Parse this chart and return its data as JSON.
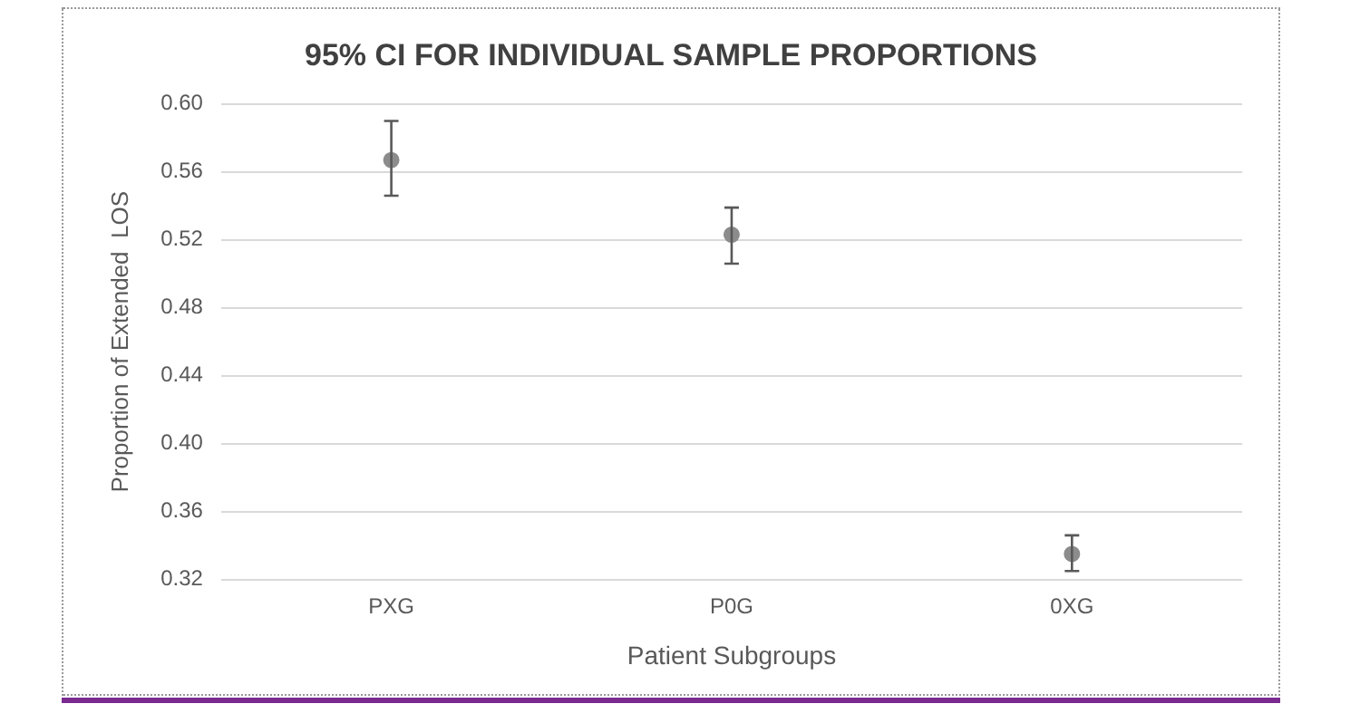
{
  "chart_data": {
    "type": "scatter",
    "title": "95% CI FOR INDIVIDUAL SAMPLE PROPORTIONS",
    "xlabel": "Patient Subgroups",
    "ylabel": "Proportion of Extended  LOS",
    "categories": [
      "PXG",
      "P0G",
      "0XG"
    ],
    "series": [
      {
        "color": "#8c8c8c",
        "values": [
          0.567,
          0.523,
          0.335
        ],
        "errors": [
          [
            0.546,
            0.59
          ],
          [
            0.506,
            0.539
          ],
          [
            0.325,
            0.346
          ]
        ]
      }
    ],
    "ylim": [
      0.32,
      0.6
    ],
    "yticks": [
      {
        "value": 0.32,
        "label": "0.32"
      },
      {
        "value": 0.36,
        "label": "0.36"
      },
      {
        "value": 0.4,
        "label": "0.40"
      },
      {
        "value": 0.44,
        "label": "0.44"
      },
      {
        "value": 0.48,
        "label": "0.48"
      },
      {
        "value": 0.52,
        "label": "0.52"
      },
      {
        "value": 0.56,
        "label": "0.56"
      },
      {
        "value": 0.6,
        "label": "0.60"
      }
    ],
    "grid": "y",
    "legend": false,
    "marker": "circle"
  }
}
